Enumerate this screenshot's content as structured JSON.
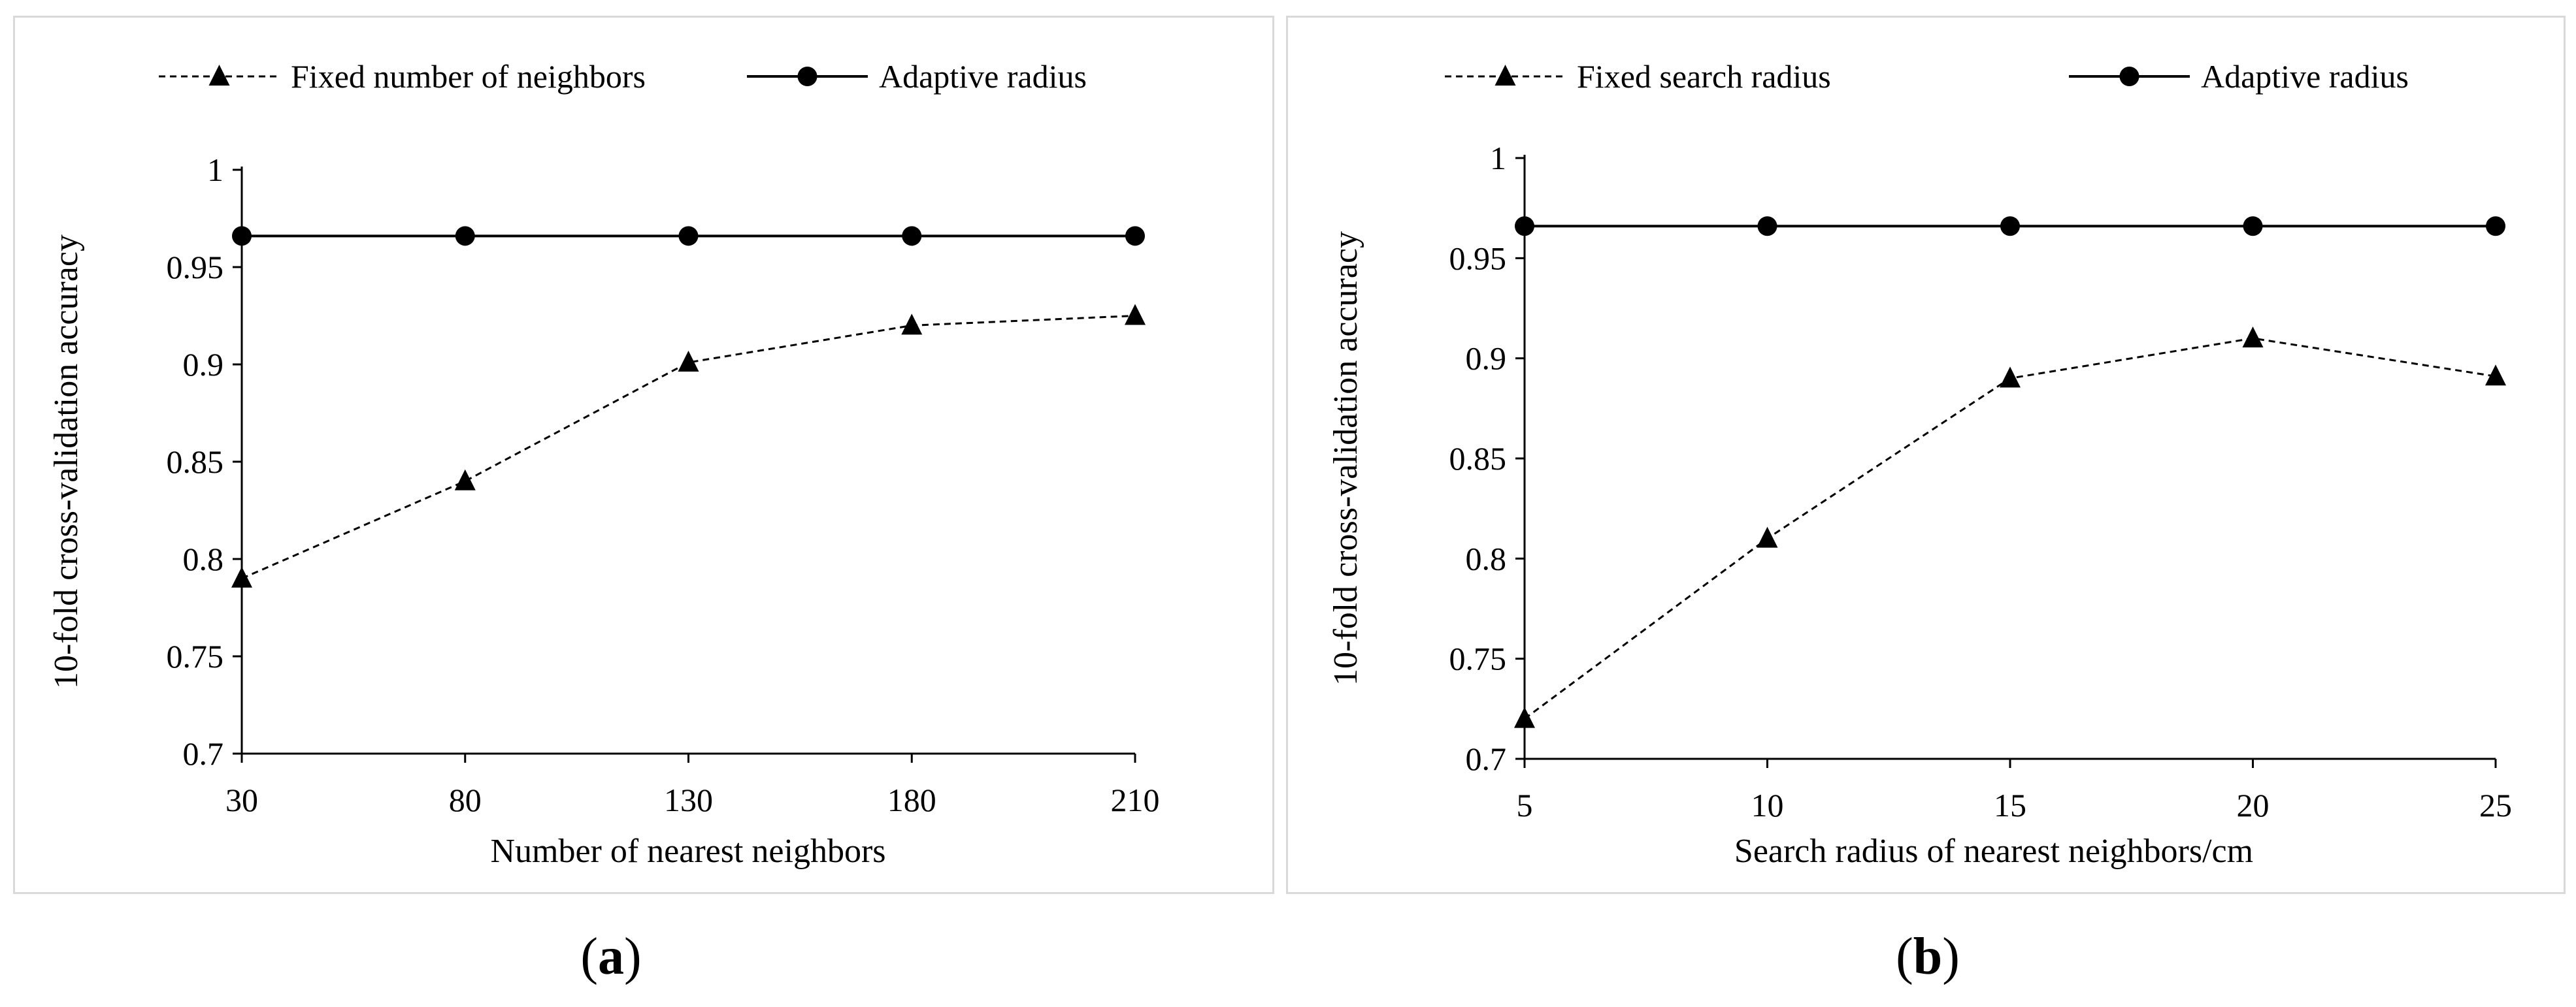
{
  "chart_data": [
    {
      "id": "a",
      "type": "line",
      "caption_letter": "a",
      "xlabel": "Number of nearest neighbors",
      "ylabel": "10-fold cross-validation accuracy",
      "categories": [
        "30",
        "80",
        "130",
        "180",
        "210"
      ],
      "ylim": [
        0.7,
        1
      ],
      "yticks": [
        0.7,
        0.75,
        0.8,
        0.85,
        0.9,
        0.95,
        1
      ],
      "ytick_labels": [
        "0.7",
        "0.75",
        "0.8",
        "0.85",
        "0.9",
        "0.95",
        "1"
      ],
      "grid": false,
      "legend_position": "top",
      "series": [
        {
          "name": "Fixed number of neighbors",
          "marker": "triangle",
          "line": "dashed",
          "values": [
            0.79,
            0.84,
            0.901,
            0.92,
            0.925
          ]
        },
        {
          "name": "Adaptive radius",
          "marker": "circle",
          "line": "solid",
          "values": [
            0.966,
            0.966,
            0.966,
            0.966,
            0.966
          ]
        }
      ]
    },
    {
      "id": "b",
      "type": "line",
      "caption_letter": "b",
      "xlabel": "Search radius of nearest neighbors/cm",
      "ylabel": "10-fold cross-validation accuracy",
      "categories": [
        "5",
        "10",
        "15",
        "20",
        "25"
      ],
      "ylim": [
        0.7,
        1
      ],
      "yticks": [
        0.7,
        0.75,
        0.8,
        0.85,
        0.9,
        0.95,
        1
      ],
      "ytick_labels": [
        "0.7",
        "0.75",
        "0.8",
        "0.85",
        "0.9",
        "0.95",
        "1"
      ],
      "grid": false,
      "legend_position": "top",
      "series": [
        {
          "name": "Fixed search radius",
          "marker": "triangle",
          "line": "dashed",
          "values": [
            0.72,
            0.81,
            0.89,
            0.91,
            0.891
          ]
        },
        {
          "name": "Adaptive radius",
          "marker": "circle",
          "line": "solid",
          "values": [
            0.966,
            0.966,
            0.966,
            0.966,
            0.966
          ]
        }
      ]
    }
  ]
}
